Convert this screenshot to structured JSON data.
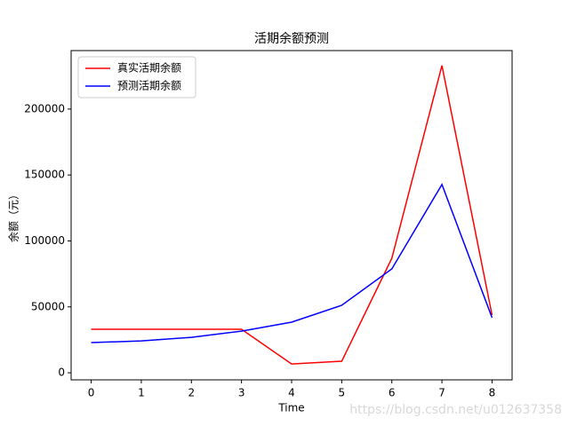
{
  "chart_data": {
    "type": "line",
    "title": "活期余额预测",
    "xlabel": "Time",
    "ylabel": "余额（元）",
    "x": [
      0,
      1,
      2,
      3,
      4,
      5,
      6,
      7,
      8
    ],
    "series": [
      {
        "name": "真实活期余额",
        "color": "#ff0000",
        "values": [
          33000,
          33000,
          33000,
          33000,
          6700,
          8750,
          86900,
          233000,
          43800
        ]
      },
      {
        "name": "预测活期余额",
        "color": "#0000ff",
        "values": [
          22900,
          24200,
          26900,
          31600,
          38400,
          51200,
          78800,
          142800,
          41800
        ]
      }
    ],
    "xlim": [
      -0.4,
      8.4
    ],
    "xticks": [
      0,
      1,
      2,
      3,
      4,
      5,
      6,
      7,
      8
    ],
    "ylim": [
      -5350,
      244350
    ],
    "yticks": [
      0,
      50000,
      100000,
      150000,
      200000
    ],
    "grid": false,
    "legend": "upper-left",
    "watermark": "https://blog.csdn.net/u012637358"
  }
}
